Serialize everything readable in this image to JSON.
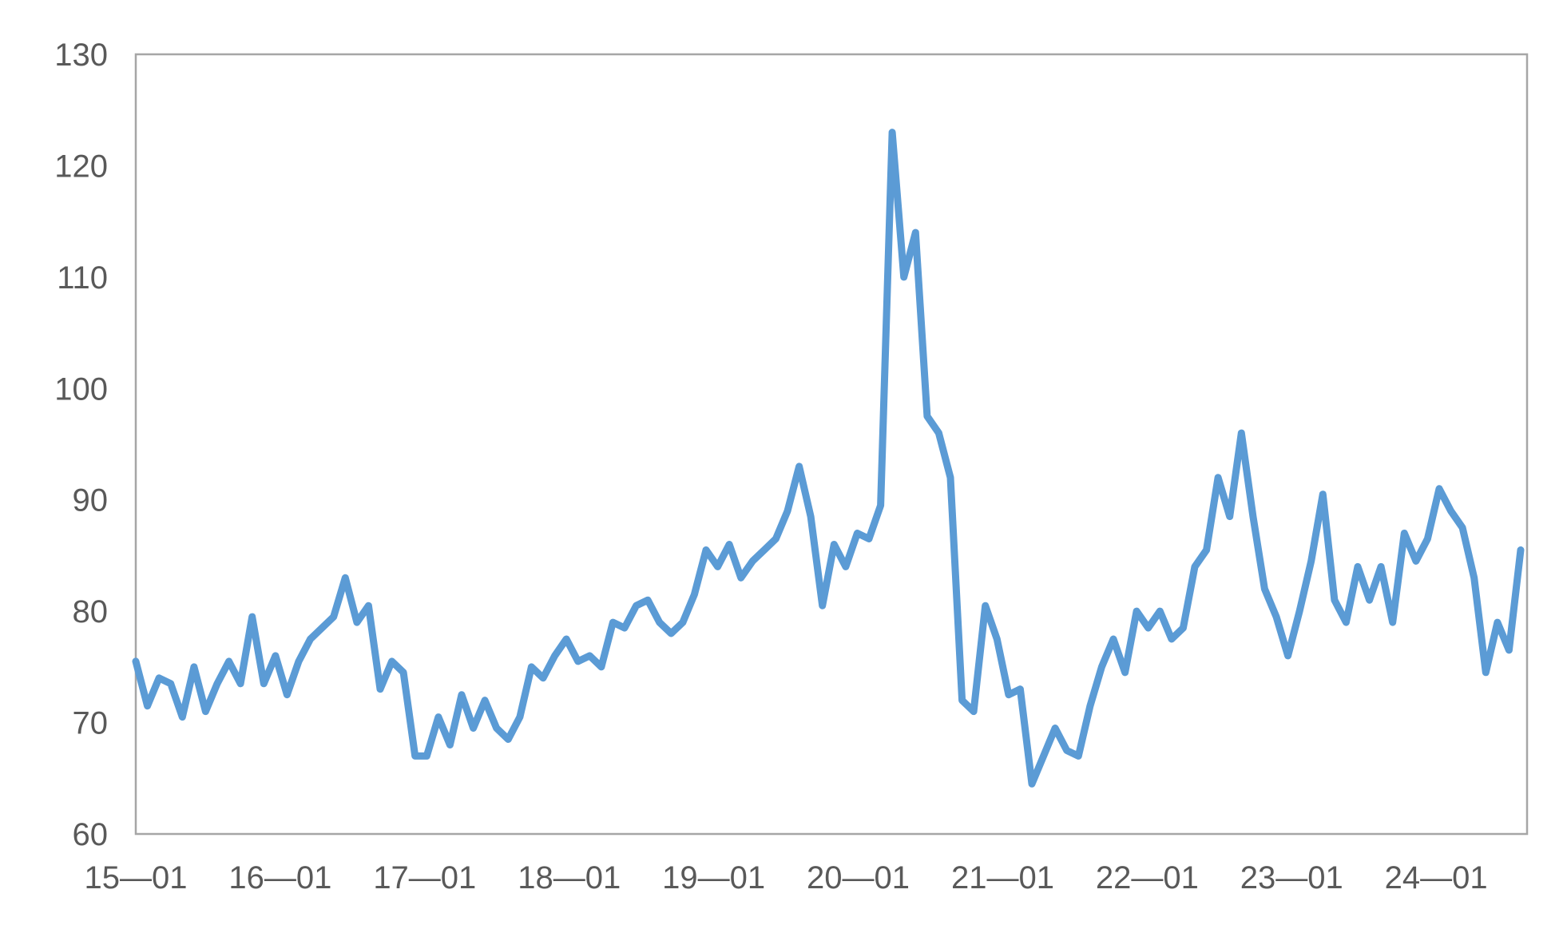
{
  "chart_data": {
    "type": "line",
    "title": "",
    "xlabel": "",
    "ylabel": "",
    "ylim": [
      60,
      130
    ],
    "yticks": [
      60,
      70,
      80,
      90,
      100,
      110,
      120,
      130
    ],
    "xlim": [
      "2015-01",
      "2024-08"
    ],
    "xticks": [
      {
        "label": "15—01",
        "x": "2015-01"
      },
      {
        "label": "16—01",
        "x": "2016-01"
      },
      {
        "label": "17—01",
        "x": "2017-01"
      },
      {
        "label": "18—01",
        "x": "2018-01"
      },
      {
        "label": "19—01",
        "x": "2019-01"
      },
      {
        "label": "20—01",
        "x": "2020-01"
      },
      {
        "label": "21—01",
        "x": "2021-01"
      },
      {
        "label": "22—01",
        "x": "2022-01"
      },
      {
        "label": "23—01",
        "x": "2023-01"
      },
      {
        "label": "24—01",
        "x": "2024-01"
      }
    ],
    "grid": false,
    "legend": "none",
    "series": [
      {
        "color": "#5b9bd5",
        "points": [
          [
            "2015-01",
            75.5
          ],
          [
            "2015-02",
            71.5
          ],
          [
            "2015-03",
            74.0
          ],
          [
            "2015-04",
            73.5
          ],
          [
            "2015-05",
            70.5
          ],
          [
            "2015-06",
            75.0
          ],
          [
            "2015-07",
            71.0
          ],
          [
            "2015-08",
            73.5
          ],
          [
            "2015-09",
            75.5
          ],
          [
            "2015-10",
            73.5
          ],
          [
            "2015-11",
            79.5
          ],
          [
            "2015-12",
            73.5
          ],
          [
            "2016-01",
            76.0
          ],
          [
            "2016-02",
            72.5
          ],
          [
            "2016-03",
            75.5
          ],
          [
            "2016-04",
            77.5
          ],
          [
            "2016-05",
            78.5
          ],
          [
            "2016-06",
            79.5
          ],
          [
            "2016-07",
            83.0
          ],
          [
            "2016-08",
            79.0
          ],
          [
            "2016-09",
            80.5
          ],
          [
            "2016-10",
            73.0
          ],
          [
            "2016-11",
            75.5
          ],
          [
            "2016-12",
            74.5
          ],
          [
            "2017-01",
            67.0
          ],
          [
            "2017-02",
            67.0
          ],
          [
            "2017-03",
            70.5
          ],
          [
            "2017-04",
            68.0
          ],
          [
            "2017-05",
            72.5
          ],
          [
            "2017-06",
            69.5
          ],
          [
            "2017-07",
            72.0
          ],
          [
            "2017-08",
            69.5
          ],
          [
            "2017-09",
            68.5
          ],
          [
            "2017-10",
            70.5
          ],
          [
            "2017-11",
            75.0
          ],
          [
            "2017-12",
            74.0
          ],
          [
            "2018-01",
            76.0
          ],
          [
            "2018-02",
            77.5
          ],
          [
            "2018-03",
            75.5
          ],
          [
            "2018-04",
            76.0
          ],
          [
            "2018-05",
            75.0
          ],
          [
            "2018-06",
            79.0
          ],
          [
            "2018-07",
            78.5
          ],
          [
            "2018-08",
            80.5
          ],
          [
            "2018-09",
            81.0
          ],
          [
            "2018-10",
            79.0
          ],
          [
            "2018-11",
            78.0
          ],
          [
            "2018-12",
            79.0
          ],
          [
            "2019-01",
            81.5
          ],
          [
            "2019-02",
            85.5
          ],
          [
            "2019-03",
            84.0
          ],
          [
            "2019-04",
            86.0
          ],
          [
            "2019-05",
            83.0
          ],
          [
            "2019-06",
            84.5
          ],
          [
            "2019-07",
            85.5
          ],
          [
            "2019-08",
            86.5
          ],
          [
            "2019-09",
            89.0
          ],
          [
            "2019-10",
            93.0
          ],
          [
            "2019-11",
            88.5
          ],
          [
            "2019-12",
            80.5
          ],
          [
            "2020-01",
            86.0
          ],
          [
            "2020-02",
            84.0
          ],
          [
            "2020-03",
            87.0
          ],
          [
            "2020-04",
            86.5
          ],
          [
            "2020-05",
            89.5
          ],
          [
            "2020-06",
            123.0
          ],
          [
            "2020-07",
            110.0
          ],
          [
            "2020-08",
            114.0
          ],
          [
            "2020-09",
            97.5
          ],
          [
            "2020-10",
            96.0
          ],
          [
            "2020-11",
            92.0
          ],
          [
            "2020-12",
            72.0
          ],
          [
            "2021-01",
            71.0
          ],
          [
            "2021-02",
            80.5
          ],
          [
            "2021-03",
            77.5
          ],
          [
            "2021-04",
            72.5
          ],
          [
            "2021-05",
            73.0
          ],
          [
            "2021-06",
            64.5
          ],
          [
            "2021-07",
            67.0
          ],
          [
            "2021-08",
            69.5
          ],
          [
            "2021-09",
            67.5
          ],
          [
            "2021-10",
            67.0
          ],
          [
            "2021-11",
            71.5
          ],
          [
            "2021-12",
            75.0
          ],
          [
            "2022-01",
            77.5
          ],
          [
            "2022-02",
            74.5
          ],
          [
            "2022-03",
            80.0
          ],
          [
            "2022-04",
            78.5
          ],
          [
            "2022-05",
            80.0
          ],
          [
            "2022-06",
            77.5
          ],
          [
            "2022-07",
            78.5
          ],
          [
            "2022-08",
            84.0
          ],
          [
            "2022-09",
            85.5
          ],
          [
            "2022-10",
            92.0
          ],
          [
            "2022-11",
            88.5
          ],
          [
            "2022-12",
            96.0
          ],
          [
            "2023-01",
            88.5
          ],
          [
            "2023-02",
            82.0
          ],
          [
            "2023-03",
            79.5
          ],
          [
            "2023-04",
            76.0
          ],
          [
            "2023-05",
            80.0
          ],
          [
            "2023-06",
            84.5
          ],
          [
            "2023-07",
            90.5
          ],
          [
            "2023-08",
            81.0
          ],
          [
            "2023-09",
            79.0
          ],
          [
            "2023-10",
            84.0
          ],
          [
            "2023-11",
            81.0
          ],
          [
            "2023-12",
            84.0
          ],
          [
            "2024-01",
            79.0
          ],
          [
            "2024-02",
            87.0
          ],
          [
            "2024-03",
            84.5
          ],
          [
            "2024-04",
            86.5
          ],
          [
            "2024-05",
            91.0
          ],
          [
            "2024-06",
            89.0
          ],
          [
            "2024-07",
            87.5
          ],
          [
            "2024-08",
            83.0
          ],
          [
            "2024-09",
            74.5
          ],
          [
            "2024-10",
            79.0
          ],
          [
            "2024-11",
            76.5
          ],
          [
            "2024-12",
            85.5
          ]
        ]
      }
    ]
  }
}
